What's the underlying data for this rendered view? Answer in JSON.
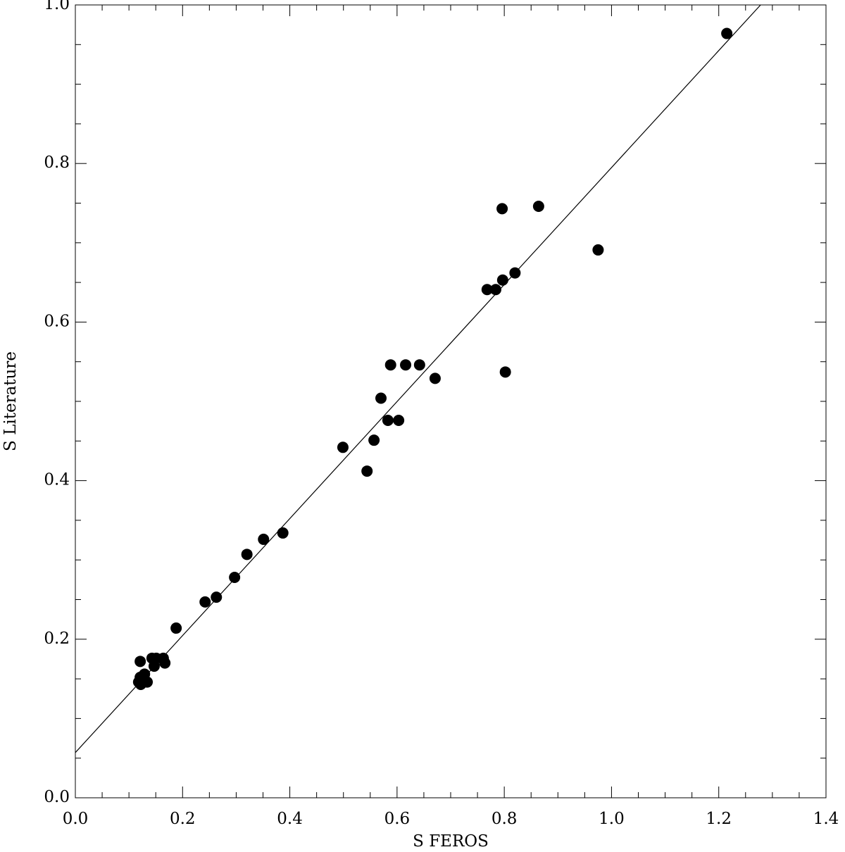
{
  "chart_data": {
    "type": "scatter",
    "xlabel": "S FEROS",
    "ylabel": "S Literature",
    "xlim": [
      0,
      1.4
    ],
    "ylim": [
      0,
      1.0
    ],
    "xticks": [
      {
        "value": 0,
        "label": "0.0"
      },
      0.2,
      0.4,
      0.6,
      0.8,
      {
        "value": 1,
        "label": "1.0"
      },
      1.2,
      1.4
    ],
    "yticks": [
      {
        "value": 0,
        "label": "0.0"
      },
      0.2,
      0.4,
      0.6,
      0.8,
      {
        "value": 1,
        "label": "1.0"
      }
    ],
    "xminorticks": [
      0.05,
      0.1,
      0.15,
      0.25,
      0.3,
      0.35,
      0.45,
      0.5,
      0.55,
      0.65,
      0.7,
      0.75,
      0.85,
      0.9,
      0.95,
      1.05,
      1.1,
      1.15,
      1.25,
      1.3,
      1.35
    ],
    "yminorticks": [
      0.05,
      0.1,
      0.15,
      0.25,
      0.3,
      0.35,
      0.45,
      0.5,
      0.55,
      0.65,
      0.7,
      0.75,
      0.85,
      0.9,
      0.95
    ],
    "series": [
      {
        "type": "scatter",
        "color": "#000000",
        "x": [
          1.215,
          0.864,
          0.796,
          0.975,
          0.82,
          0.797,
          0.768,
          0.784,
          0.802,
          0.588,
          0.616,
          0.642,
          0.671,
          0.57,
          0.583,
          0.603,
          0.557,
          0.499,
          0.544,
          0.387,
          0.351,
          0.32,
          0.297,
          0.263,
          0.242,
          0.188,
          0.121,
          0.143,
          0.151,
          0.164,
          0.167,
          0.147,
          0.129,
          0.121,
          0.118,
          0.134,
          0.122
        ],
        "values": [
          0.964,
          0.746,
          0.743,
          0.691,
          0.662,
          0.653,
          0.641,
          0.641,
          0.537,
          0.546,
          0.546,
          0.546,
          0.529,
          0.504,
          0.476,
          0.476,
          0.451,
          0.442,
          0.412,
          0.334,
          0.326,
          0.307,
          0.278,
          0.253,
          0.247,
          0.214,
          0.172,
          0.176,
          0.176,
          0.176,
          0.17,
          0.166,
          0.156,
          0.152,
          0.146,
          0.146,
          0.143
        ]
      },
      {
        "type": "line",
        "color": "#000000",
        "x": [
          0,
          1.278
        ],
        "values": [
          0.057,
          1.0
        ]
      }
    ]
  }
}
